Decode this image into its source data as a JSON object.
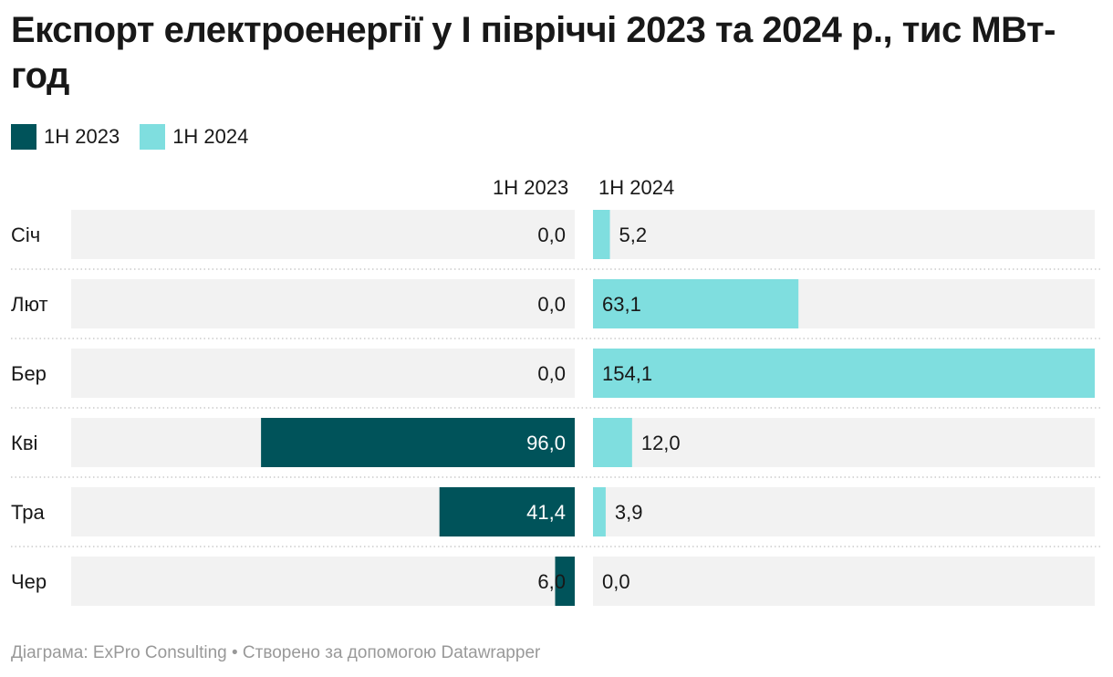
{
  "colors": {
    "series_2023": "#00535a",
    "series_2024": "#7fdedf",
    "track": "#f2f2f2",
    "divider": "#cccccc"
  },
  "chart_data": {
    "type": "bar",
    "orientation": "horizontal-split",
    "title": "Експорт електроенергії у І півріччі 2023 та 2024 р., тис МВт-год",
    "legend_position": "top-left",
    "categories": [
      "Січ",
      "Лют",
      "Бер",
      "Кві",
      "Тра",
      "Чер"
    ],
    "series": [
      {
        "name": "1H 2023",
        "values": [
          0.0,
          0.0,
          0.0,
          96.0,
          41.4,
          6.0
        ],
        "labels": [
          "0,0",
          "0,0",
          "0,0",
          "96,0",
          "41,4",
          "6,0"
        ]
      },
      {
        "name": "1H 2024",
        "values": [
          5.2,
          63.1,
          154.1,
          12.0,
          3.9,
          0.0
        ],
        "labels": [
          "5,2",
          "63,1",
          "154,1",
          "12,0",
          "3,9",
          "0,0"
        ]
      }
    ],
    "xlim": [
      0,
      154.1
    ],
    "grid": false
  },
  "footer": "Діаграма: ExPro Consulting • Створено за допомогою Datawrapper"
}
